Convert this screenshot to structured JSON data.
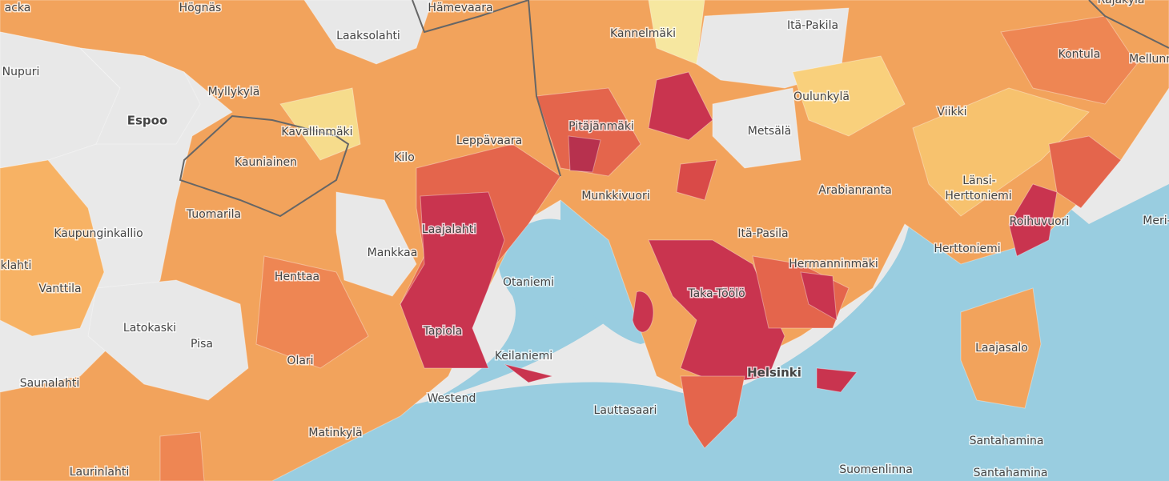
{
  "map": {
    "labels": [
      "acka",
      "Högnäs",
      "Hämevaara",
      "Laaksolahti",
      "Kannelmäki",
      "Itä-Pakila",
      "Rajakylä",
      "Kontula",
      "Mellunm",
      "Nupuri",
      "Myllykylä",
      "Espoo",
      "Kavallinmäki",
      "Kauniainen",
      "Kilo",
      "Leppävaara",
      "Pitäjänmäki",
      "Metsälä",
      "Oulunkylä",
      "Viikki",
      "Länsi-",
      "Herttoniemi",
      "Roihuvuori",
      "Meri-",
      "Tuomarila",
      "Kaupunginkallio",
      "klahti",
      "Vanttila",
      "Laajalahti",
      "Mankkaa",
      "Munkkivuori",
      "Arabianranta",
      "Itä-Pasila",
      "Hermanninmäki",
      "Herttoniemi",
      "Otaniemi",
      "Henttaa",
      "Taka-Töölö",
      "Latokaski",
      "Pisa",
      "Tapiola",
      "Keilaniemi",
      "Olari",
      "Laajasalo",
      "Helsinki",
      "Saunalahti",
      "Westend",
      "Lauttasaari",
      "Matinkylä",
      "Santahamina",
      "Santahamina",
      "Suomenlinna",
      "Laurinlahti"
    ]
  }
}
